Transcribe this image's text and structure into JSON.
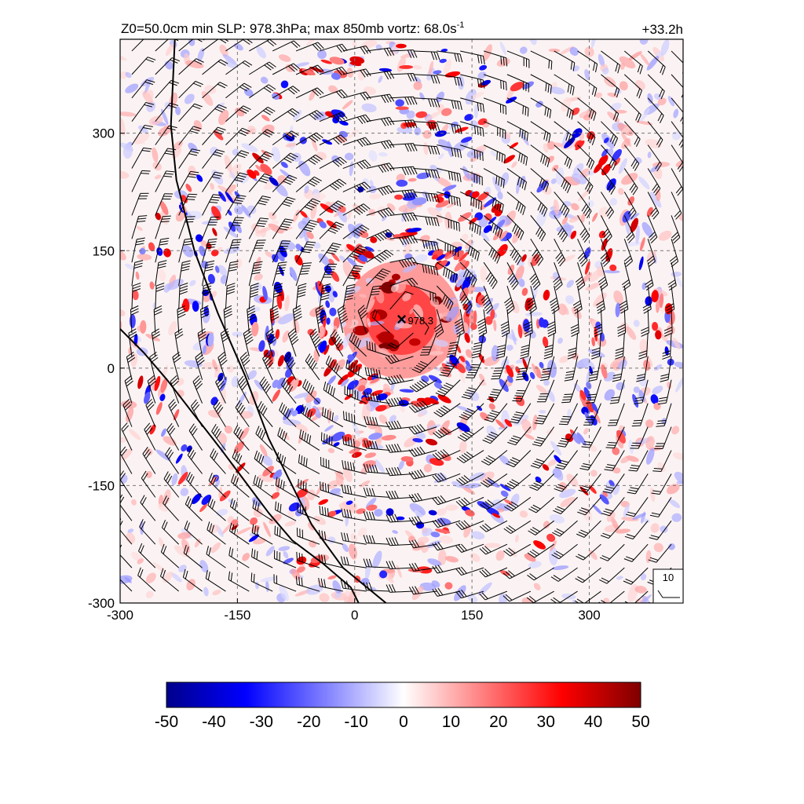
{
  "chart_data": {
    "type": "heatmap",
    "title": "Z0=50.0cm  min SLP: 978.3hPa; max 850mb vortz:  68.0s",
    "title_superscript": "-1",
    "time_label": "+33.2h",
    "xlim": [
      -300,
      420
    ],
    "ylim": [
      -300,
      420
    ],
    "x_ticks": [
      -300,
      -150,
      0,
      150,
      300
    ],
    "y_ticks": [
      -300,
      -150,
      0,
      150,
      300
    ],
    "grid": "dashed gray",
    "center_marker": {
      "x": 60,
      "y": 62,
      "symbol": "×",
      "label": "978.3"
    },
    "ref_vector_label": "10",
    "colorbar": {
      "ticks": [
        -50,
        -40,
        -30,
        -20,
        -10,
        0,
        10,
        20,
        30,
        40,
        50
      ],
      "min": -50,
      "max": 50,
      "colors": [
        "#00008b",
        "#0000ff",
        "#7f7fff",
        "#ffffff",
        "#ff7f7f",
        "#ff0000",
        "#7f0000"
      ]
    },
    "coastlines": [
      [
        [
          -230,
          420
        ],
        [
          -235,
          310
        ],
        [
          -228,
          240
        ],
        [
          -205,
          150
        ],
        [
          -175,
          70
        ],
        [
          -140,
          -10
        ],
        [
          -110,
          -90
        ],
        [
          -80,
          -150
        ],
        [
          -55,
          -200
        ],
        [
          -15,
          -255
        ],
        [
          40,
          -300
        ]
      ],
      [
        [
          -300,
          50
        ],
        [
          -270,
          20
        ],
        [
          -240,
          -15
        ],
        [
          -205,
          -60
        ],
        [
          -170,
          -105
        ],
        [
          -140,
          -145
        ],
        [
          -110,
          -185
        ],
        [
          -80,
          -220
        ],
        [
          -40,
          -250
        ],
        [
          -5,
          -280
        ],
        [
          5,
          -300
        ]
      ]
    ],
    "vortex_core": {
      "x": 60,
      "y": 62,
      "peak": 45
    },
    "rainbands": [
      {
        "radius": 100,
        "sign": 1
      },
      {
        "radius": 170,
        "sign": 1
      },
      {
        "radius": 260,
        "sign": -1
      },
      {
        "radius": 330,
        "sign": 1
      }
    ]
  }
}
